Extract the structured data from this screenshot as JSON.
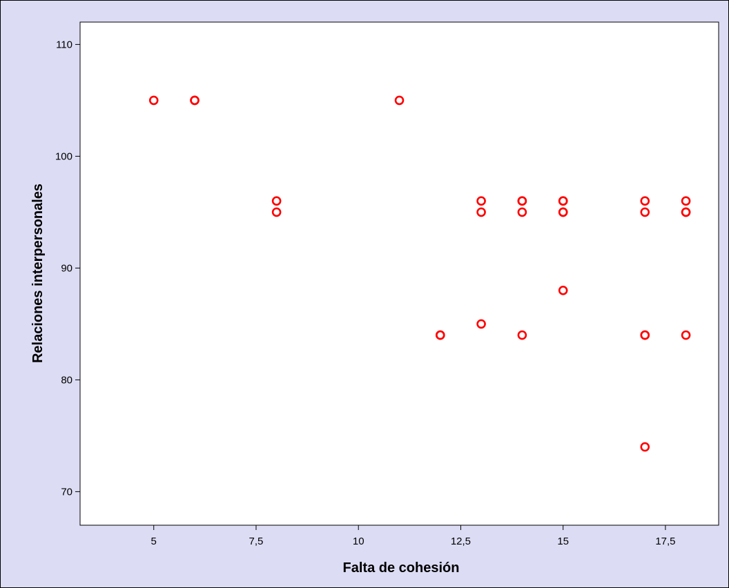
{
  "chart_data": {
    "type": "scatter",
    "title": "",
    "xlabel": "Falta de cohesión",
    "ylabel": "Relaciones interpersonales",
    "xlim": [
      3.2,
      18.8
    ],
    "ylim": [
      67,
      112
    ],
    "x_ticks": [
      5,
      7.5,
      10,
      12.5,
      15,
      17.5
    ],
    "x_tick_labels": [
      "5",
      "7,5",
      "10",
      "12,5",
      "15",
      "17,5"
    ],
    "y_ticks": [
      70,
      80,
      90,
      100,
      110
    ],
    "y_tick_labels": [
      "70",
      "80",
      "90",
      "100",
      "110"
    ],
    "grid": false,
    "legend": "none",
    "marker": "open-circle",
    "colors": {
      "marker": "#ff0000",
      "plot_background": "#ffffff",
      "frame_background": "#dcdcf4",
      "axis": "#000000"
    },
    "points": [
      {
        "x": 5,
        "y": 105
      },
      {
        "x": 6,
        "y": 105
      },
      {
        "x": 6,
        "y": 105
      },
      {
        "x": 8,
        "y": 96
      },
      {
        "x": 8,
        "y": 95
      },
      {
        "x": 11,
        "y": 105
      },
      {
        "x": 12,
        "y": 84
      },
      {
        "x": 12,
        "y": 84
      },
      {
        "x": 13,
        "y": 96
      },
      {
        "x": 13,
        "y": 95
      },
      {
        "x": 13,
        "y": 85
      },
      {
        "x": 14,
        "y": 96
      },
      {
        "x": 14,
        "y": 96
      },
      {
        "x": 14,
        "y": 95
      },
      {
        "x": 14,
        "y": 84
      },
      {
        "x": 15,
        "y": 96
      },
      {
        "x": 15,
        "y": 96
      },
      {
        "x": 15,
        "y": 95
      },
      {
        "x": 15,
        "y": 95
      },
      {
        "x": 15,
        "y": 88
      },
      {
        "x": 17,
        "y": 96
      },
      {
        "x": 17,
        "y": 95
      },
      {
        "x": 17,
        "y": 84
      },
      {
        "x": 17,
        "y": 84
      },
      {
        "x": 17,
        "y": 74
      },
      {
        "x": 18,
        "y": 96
      },
      {
        "x": 18,
        "y": 95
      },
      {
        "x": 18,
        "y": 95
      },
      {
        "x": 18,
        "y": 84
      }
    ]
  }
}
